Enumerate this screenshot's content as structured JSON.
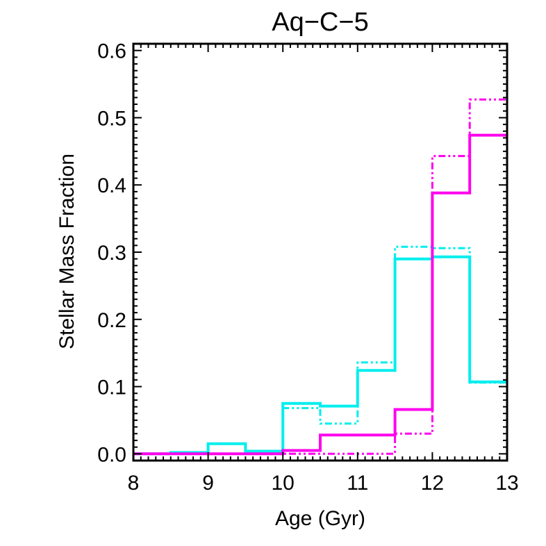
{
  "chart_data": {
    "type": "step",
    "title": "Aq−C−5",
    "xlabel": "Age (Gyr)",
    "ylabel": "Stellar Mass Fraction",
    "xlim": [
      8,
      13
    ],
    "ylim": [
      -0.01,
      0.61
    ],
    "x_ticks": [
      8,
      9,
      10,
      11,
      12,
      13
    ],
    "x_tick_labels": [
      "8",
      "9",
      "10",
      "11",
      "12",
      "13"
    ],
    "y_ticks": [
      0.0,
      0.1,
      0.2,
      0.3,
      0.4,
      0.5,
      0.6
    ],
    "y_tick_labels": [
      "0.0",
      "0.1",
      "0.2",
      "0.3",
      "0.4",
      "0.5",
      "0.6"
    ],
    "bin_edges": [
      8.0,
      8.5,
      9.0,
      9.5,
      10.0,
      10.5,
      11.0,
      11.5,
      12.0,
      12.5,
      13.0
    ],
    "series": [
      {
        "name": "cyan-solid",
        "color": "#00eeee",
        "style": "solid",
        "values": [
          0.0,
          0.002,
          0.015,
          0.004,
          0.075,
          0.071,
          0.124,
          0.29,
          0.293,
          0.107
        ]
      },
      {
        "name": "cyan-dashdot",
        "color": "#00eeee",
        "style": "dashdot",
        "values": [
          0.0,
          0.0,
          0.0,
          0.0,
          0.068,
          0.045,
          0.136,
          0.308,
          0.306,
          0.106
        ]
      },
      {
        "name": "magenta-solid",
        "color": "#ff00ee",
        "style": "solid",
        "values": [
          0.0,
          0.0,
          0.0,
          0.0,
          0.005,
          0.028,
          0.028,
          0.066,
          0.388,
          0.474
        ]
      },
      {
        "name": "magenta-dashdot",
        "color": "#ff00ee",
        "style": "dashdot",
        "values": [
          0.0,
          0.0,
          0.0,
          0.0,
          0.0,
          0.0,
          0.0,
          0.03,
          0.443,
          0.527
        ]
      }
    ]
  }
}
